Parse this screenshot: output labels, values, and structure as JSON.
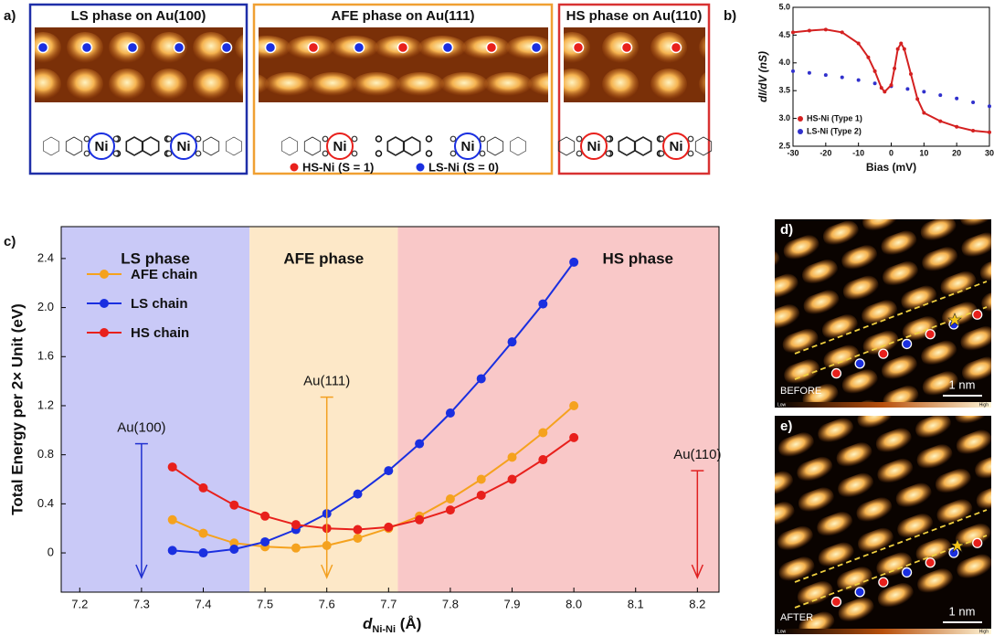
{
  "panel_a": {
    "label": "a)",
    "boxes": [
      {
        "title": "LS phase on Au(100)",
        "color": "#1f2fa8",
        "ni": [
          "Ni",
          "Ni"
        ]
      },
      {
        "title": "AFE phase on Au(111)",
        "color": "#f0a032",
        "ni": [
          "Ni",
          "Ni"
        ]
      },
      {
        "title": "HS phase on Au(110)",
        "color": "#d83232",
        "ni": [
          "Ni",
          "Ni"
        ]
      }
    ],
    "legend": [
      "HS-Ni (S = 1)",
      "LS-Ni (S = 0)"
    ]
  },
  "chart_data": [
    {
      "label": "b)",
      "type": "line",
      "ylabel": "dI/dV (nS)",
      "xlabel": "Bias (mV)",
      "xlim": [
        -30,
        30
      ],
      "ylim": [
        2.5,
        5
      ],
      "xticks": [
        -30,
        -20,
        -10,
        0,
        10,
        20,
        30
      ],
      "yticks": [
        2.5,
        {
          "value": 3,
          "label": "3.0"
        },
        3.5,
        {
          "value": 4,
          "label": "4.0"
        },
        4.5,
        {
          "value": 5,
          "label": "5.0"
        }
      ],
      "legend": "lower left",
      "series": [
        {
          "name": "HS-Ni (Type 1)",
          "color": "#d42020",
          "x": [
            -30,
            -25,
            -20,
            -15,
            -10,
            -7,
            -5,
            -3,
            -2,
            0,
            1,
            2,
            3,
            4,
            6,
            8,
            10,
            15,
            20,
            25,
            30
          ],
          "values": [
            4.55,
            4.58,
            4.6,
            4.55,
            4.35,
            4.1,
            3.85,
            3.55,
            3.48,
            3.6,
            3.9,
            4.25,
            4.35,
            4.25,
            3.8,
            3.35,
            3.1,
            2.95,
            2.85,
            2.78,
            2.75
          ]
        },
        {
          "name": "LS-Ni (Type 2)",
          "color": "#3030cc",
          "x": [
            -30,
            -25,
            -20,
            -15,
            -10,
            -5,
            0,
            5,
            10,
            15,
            20,
            25,
            30
          ],
          "values": [
            3.85,
            3.82,
            3.78,
            3.74,
            3.69,
            3.63,
            3.58,
            3.53,
            3.48,
            3.42,
            3.36,
            3.29,
            3.22
          ]
        }
      ]
    },
    {
      "label": "c)",
      "type": "line",
      "ylabel": "Total Energy per 2× Unit (eV)",
      "xlabel": "d",
      "xlabel_sub": "Ni-Ni",
      "xlabel_unit": " (Å)",
      "xlim": [
        7.17,
        8.235
      ],
      "ylim": [
        -0.32,
        2.66
      ],
      "xticks": [
        7.2,
        7.3,
        7.4,
        7.5,
        7.6,
        7.7,
        7.8,
        7.9,
        {
          "value": 8,
          "label": "8.0"
        },
        8.1,
        8.2
      ],
      "yticks": [
        0,
        0.4,
        0.8,
        1.2,
        1.6,
        {
          "value": 2,
          "label": "2.0"
        },
        2.4
      ],
      "legend": "upper left",
      "regions": [
        {
          "label": "LS phase",
          "from": 7.17,
          "to": 7.475,
          "color": "#c9c9f7"
        },
        {
          "label": "AFE phase",
          "from": 7.475,
          "to": 7.715,
          "color": "#fde8c8"
        },
        {
          "label": "HS phase",
          "from": 7.715,
          "to": 8.235,
          "color": "#f9c8c8"
        }
      ],
      "markers": [
        {
          "label": "Au(100)",
          "x": 7.3,
          "y": 0.89,
          "color": "#1f2fd0"
        },
        {
          "label": "Au(111)",
          "x": 7.6,
          "y": 1.27,
          "color": "#f3a020"
        },
        {
          "label": "Au(110)",
          "x": 8.2,
          "y": 0.67,
          "color": "#e02020"
        }
      ],
      "x": [
        7.35,
        7.4,
        7.45,
        7.5,
        7.55,
        7.6,
        7.65,
        7.7,
        7.75,
        7.8,
        7.85,
        7.9,
        7.95,
        8.0
      ],
      "series": [
        {
          "name": "AFE chain",
          "color": "#f5a21e",
          "values": [
            0.27,
            0.16,
            0.08,
            0.05,
            0.04,
            0.06,
            0.12,
            0.2,
            0.3,
            0.44,
            0.6,
            0.78,
            0.98,
            1.2
          ]
        },
        {
          "name": "LS chain",
          "color": "#1a2fe0",
          "values": [
            0.02,
            0.0,
            0.03,
            0.09,
            0.19,
            0.32,
            0.48,
            0.67,
            0.89,
            1.14,
            1.42,
            1.72,
            2.03,
            2.37
          ]
        },
        {
          "name": "HS chain",
          "color": "#e8201c",
          "values": [
            0.7,
            0.53,
            0.39,
            0.3,
            0.23,
            0.2,
            0.19,
            0.21,
            0.27,
            0.35,
            0.47,
            0.6,
            0.76,
            0.94
          ]
        }
      ]
    }
  ],
  "panel_d": {
    "label": "d)",
    "caption": "BEFORE",
    "scale": "1 nm",
    "colorbar": [
      "Low",
      "High"
    ]
  },
  "panel_e": {
    "label": "e)",
    "caption": "AFTER",
    "scale": "1 nm",
    "colorbar": [
      "Low",
      "High"
    ]
  }
}
